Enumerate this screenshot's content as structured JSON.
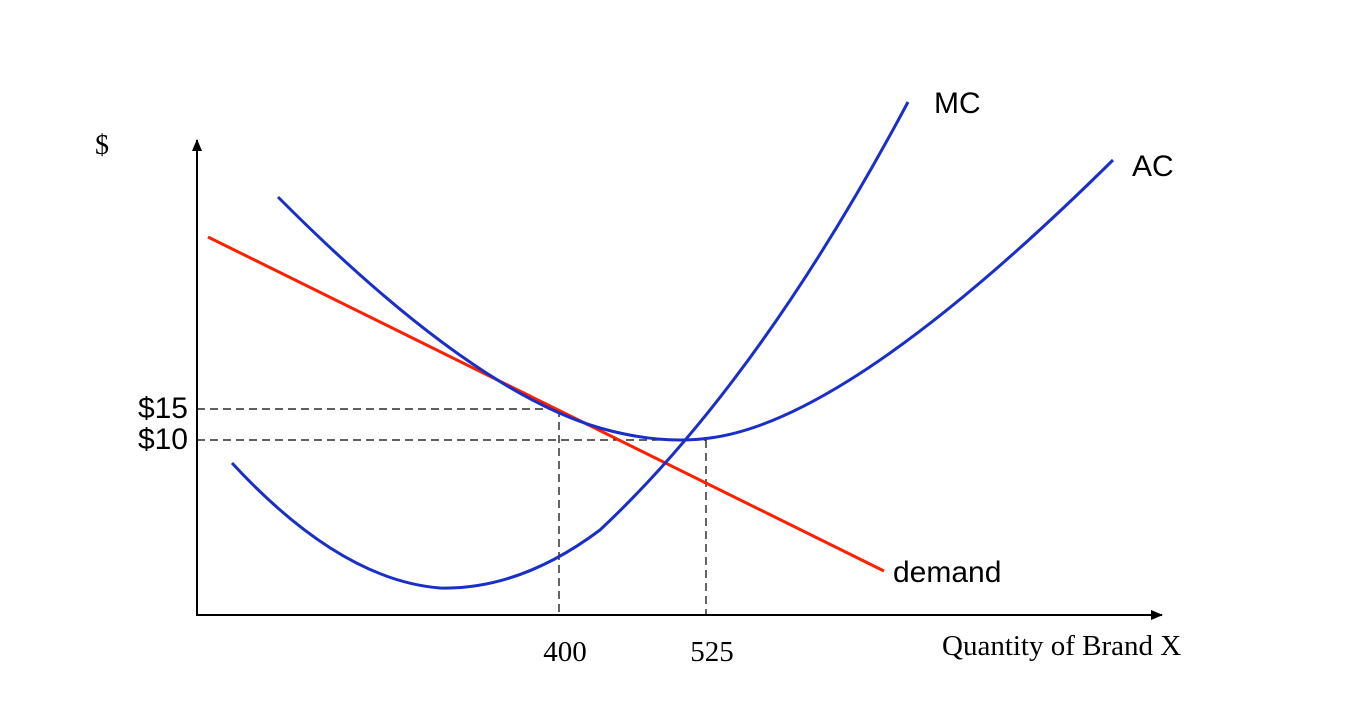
{
  "axes": {
    "y_label": "$",
    "x_label": "Quantity of Brand X"
  },
  "curves": {
    "mc": "MC",
    "ac": "AC",
    "demand": "demand"
  },
  "price_labels": [
    "$15",
    "$10"
  ],
  "quantity_labels": [
    "400",
    "525"
  ]
}
